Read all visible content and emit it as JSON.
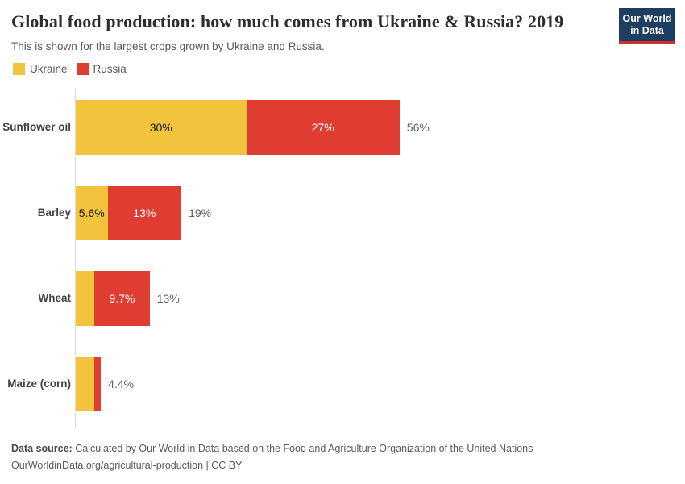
{
  "header": {
    "title": "Global food production: how much comes from Ukraine & Russia? 2019",
    "subtitle": "This is shown for the largest crops grown by Ukraine and Russia.",
    "logo": {
      "line1": "Our World",
      "line2": "in Data",
      "bg_color": "#1d3d63",
      "accent_color": "#d13026"
    }
  },
  "legend": {
    "items": [
      {
        "label": "Ukraine",
        "color": "#f2c33c"
      },
      {
        "label": "Russia",
        "color": "#df3c32"
      }
    ]
  },
  "chart_data": {
    "type": "bar",
    "orientation": "horizontal",
    "stacked": true,
    "unit": "%",
    "title": "Global food production: how much comes from Ukraine & Russia? 2019",
    "subtitle": "This is shown for the largest crops grown by Ukraine and Russia.",
    "series_names": [
      "Ukraine",
      "Russia"
    ],
    "colors": {
      "ukraine": "#f2c33c",
      "russia": "#df3c32"
    },
    "categories": [
      "Sunflower oil",
      "Barley",
      "Wheat",
      "Maize (corn)"
    ],
    "xlim": [
      0,
      60
    ],
    "grid": false,
    "legend_position": "top-left",
    "rows": [
      {
        "category": "Sunflower oil",
        "ukraine": 30,
        "russia": 27,
        "total": 56,
        "ukraine_label": "30%",
        "russia_label": "27%",
        "total_label": "56%"
      },
      {
        "category": "Barley",
        "ukraine": 5.6,
        "russia": 13,
        "total": 19,
        "ukraine_label": "5.6%",
        "russia_label": "13%",
        "total_label": "19%"
      },
      {
        "category": "Wheat",
        "ukraine": 3.3,
        "russia": 9.7,
        "total": 13,
        "ukraine_label": "",
        "russia_label": "9.7%",
        "total_label": "13%"
      },
      {
        "category": "Maize (corn)",
        "ukraine": 3.2,
        "russia": 1.2,
        "total": 4.4,
        "ukraine_label": "",
        "russia_label": "",
        "total_label": "4.4%"
      }
    ]
  },
  "footer": {
    "source_prefix": "Data source:",
    "source_text": " Calculated by Our World in Data based on the Food and Agriculture Organization of the United Nations",
    "citation": "OurWorldinData.org/agricultural-production | CC BY"
  }
}
